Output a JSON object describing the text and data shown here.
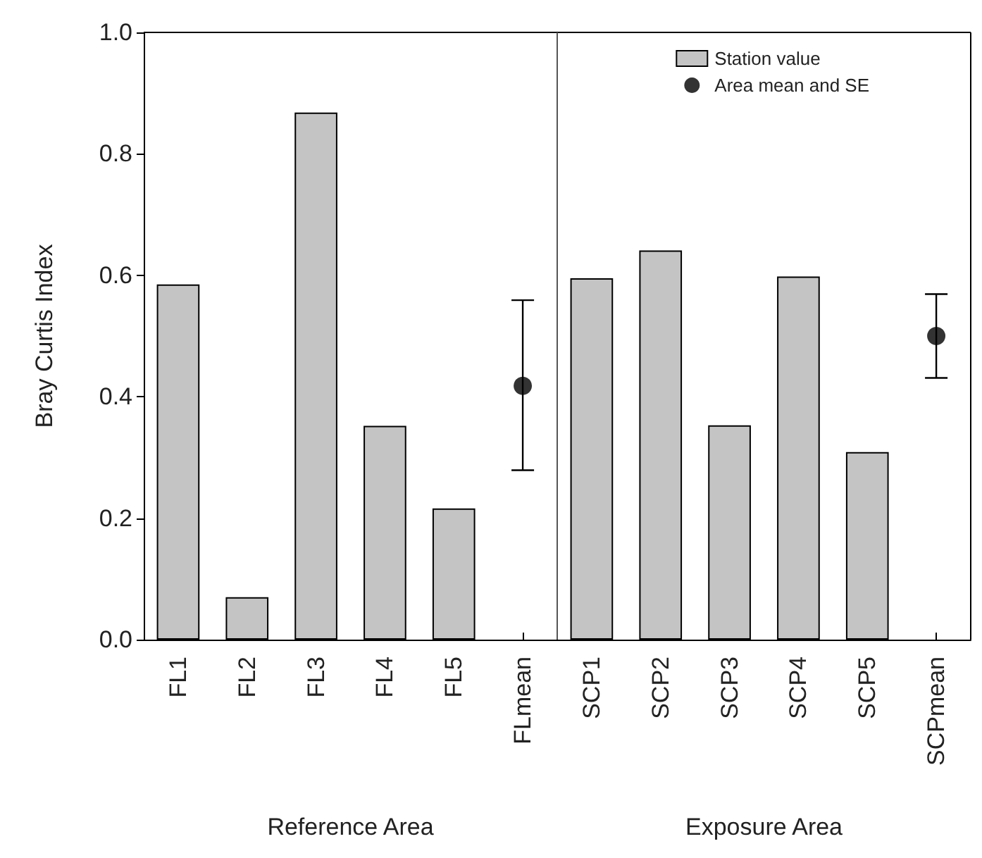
{
  "chart_data": {
    "type": "bar",
    "ylabel": "Bray Curtis Index",
    "categories": [
      "FL1",
      "FL2",
      "FL3",
      "FL4",
      "FL5",
      "FLmean",
      "SCP1",
      "SCP2",
      "SCP3",
      "SCP4",
      "SCP5",
      "SCPmean"
    ],
    "series": [
      {
        "name": "Station value",
        "color": "#c4c4c4",
        "values": [
          0.585,
          0.07,
          0.868,
          0.352,
          0.216,
          null,
          0.595,
          0.641,
          0.353,
          0.598,
          0.309,
          null
        ]
      },
      {
        "name": "Area mean and SE",
        "type": "scatter",
        "color": "#000000",
        "x": [
          "FLmean",
          "SCPmean"
        ],
        "values": [
          0.418,
          0.5
        ],
        "errors": [
          [
            0.279,
            0.559
          ],
          [
            0.431,
            0.569
          ]
        ]
      }
    ],
    "ylim": [
      0,
      1
    ],
    "yticks": [
      {
        "value": 0,
        "label": "0.0"
      },
      {
        "value": 0.2,
        "label": "0.2"
      },
      {
        "value": 0.4,
        "label": "0.4"
      },
      {
        "value": 0.6,
        "label": "0.6"
      },
      {
        "value": 0.8,
        "label": "0.8"
      },
      {
        "value": 1,
        "label": "1.0"
      }
    ],
    "annotations": [
      "Reference Area",
      "Exposure Area"
    ],
    "grid": false,
    "legend": "top right",
    "marker": "circle"
  }
}
